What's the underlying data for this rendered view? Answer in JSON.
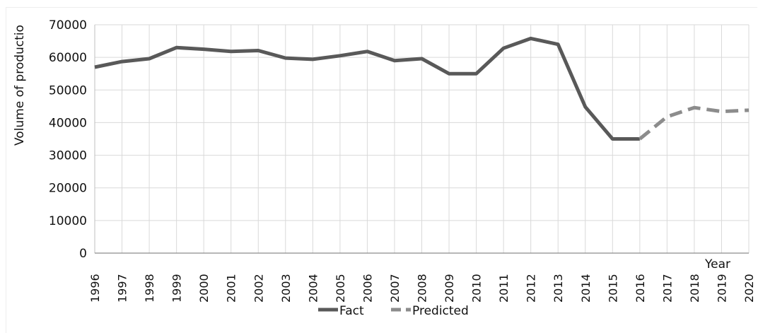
{
  "chart_data": {
    "type": "line",
    "title": "",
    "xlabel": "Year",
    "ylabel": "Volume of productio",
    "ylim": [
      0,
      70000
    ],
    "y_ticks": [
      "0",
      "10000",
      "20000",
      "30000",
      "40000",
      "50000",
      "60000",
      "70000"
    ],
    "categories": [
      "1996",
      "1997",
      "1998",
      "1999",
      "2000",
      "2001",
      "2002",
      "2003",
      "2004",
      "2005",
      "2006",
      "2007",
      "2008",
      "2009",
      "2010",
      "2011",
      "2012",
      "2013",
      "2014",
      "2015",
      "2016",
      "2017",
      "2018",
      "2019",
      "2020"
    ],
    "grid": true,
    "legend_position": "bottom",
    "series": [
      {
        "name": "Fact",
        "style": "solid",
        "color": "#595959",
        "x": [
          "1996",
          "1997",
          "1998",
          "1999",
          "2000",
          "2001",
          "2002",
          "2003",
          "2004",
          "2005",
          "2006",
          "2007",
          "2008",
          "2009",
          "2010",
          "2011",
          "2012",
          "2013",
          "2014",
          "2015",
          "2016"
        ],
        "values": [
          57000,
          58700,
          59600,
          63000,
          62500,
          61800,
          62100,
          59800,
          59400,
          60500,
          61800,
          59000,
          59600,
          55000,
          55000,
          62800,
          65800,
          64000,
          44800,
          35000,
          35000
        ]
      },
      {
        "name": "Predicted",
        "style": "dashed",
        "color": "#8c8c8c",
        "x": [
          "2016",
          "2017",
          "2018",
          "2019",
          "2020"
        ],
        "values": [
          35000,
          41800,
          44600,
          43400,
          43800
        ]
      }
    ]
  }
}
